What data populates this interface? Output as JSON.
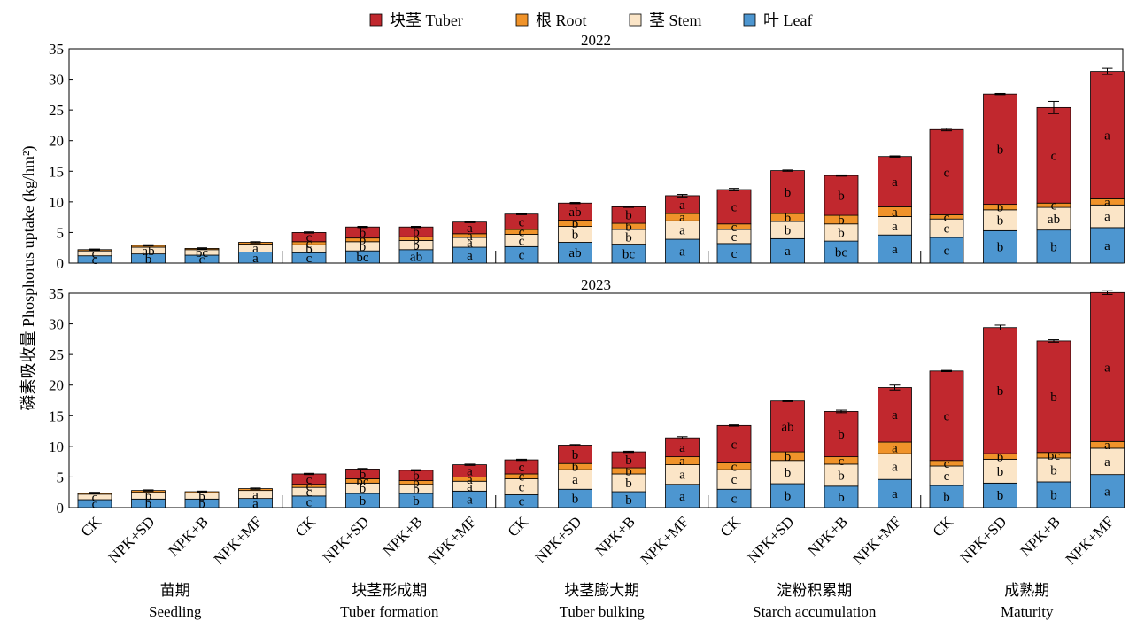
{
  "chart_data": {
    "type": "bar",
    "stacked": true,
    "ylabel": "磷素吸收量 Phosphorus uptake (kg/hm²)",
    "ylim": [
      0,
      35
    ],
    "yticks": [
      0,
      5,
      10,
      15,
      20,
      25,
      30,
      35
    ],
    "legend": {
      "position": "top-center",
      "entries": [
        "块茎 Tuber",
        "根 Root",
        "茎 Stem",
        "叶 Leaf"
      ]
    },
    "colors": {
      "leaf": "#4d96d0",
      "stem": "#fbe5c7",
      "root": "#f0932a",
      "tuber": "#c1282e"
    },
    "treatments": [
      "CK",
      "NPK+SD",
      "NPK+B",
      "NPK+MF"
    ],
    "stages": [
      {
        "zh": "苗期",
        "en": "Seedling"
      },
      {
        "zh": "块茎形成期",
        "en": "Tuber formation"
      },
      {
        "zh": "块茎膨大期",
        "en": "Tuber bulking"
      },
      {
        "zh": "淀粉积累期",
        "en": "Starch accumulation"
      },
      {
        "zh": "成熟期",
        "en": "Maturity"
      }
    ],
    "panels": [
      {
        "title": "2022",
        "bars": [
          {
            "stage": "Seedling",
            "treatment": "CK",
            "leaf": 1.2,
            "stem": 0.8,
            "root": 0.2,
            "tuber": 0.0,
            "total": 2.3,
            "err": 0.1,
            "letters": {
              "leaf": "c",
              "stem": "c",
              "root": "",
              "tuber": ""
            }
          },
          {
            "stage": "Seedling",
            "treatment": "NPK+SD",
            "leaf": 1.5,
            "stem": 1.1,
            "root": 0.3,
            "tuber": 0.0,
            "total": 3.0,
            "err": 0.1,
            "letters": {
              "leaf": "b",
              "stem": "ab",
              "root": "",
              "tuber": ""
            }
          },
          {
            "stage": "Seedling",
            "treatment": "NPK+B",
            "leaf": 1.3,
            "stem": 0.9,
            "root": 0.2,
            "tuber": 0.0,
            "total": 2.5,
            "err": 0.1,
            "letters": {
              "leaf": "c",
              "stem": "bc",
              "root": "",
              "tuber": ""
            }
          },
          {
            "stage": "Seedling",
            "treatment": "NPK+MF",
            "leaf": 1.8,
            "stem": 1.3,
            "root": 0.3,
            "tuber": 0.0,
            "total": 3.4,
            "err": 0.1,
            "letters": {
              "leaf": "a",
              "stem": "a",
              "root": "",
              "tuber": ""
            }
          },
          {
            "stage": "Tuber formation",
            "treatment": "CK",
            "leaf": 1.7,
            "stem": 1.3,
            "root": 0.5,
            "tuber": 1.5,
            "total": 5.0,
            "err": 0.1,
            "letters": {
              "leaf": "c",
              "stem": "b",
              "root": "c",
              "tuber": "c"
            }
          },
          {
            "stage": "Tuber formation",
            "treatment": "NPK+SD",
            "leaf": 2.0,
            "stem": 1.5,
            "root": 0.6,
            "tuber": 1.8,
            "total": 5.9,
            "err": 0.1,
            "letters": {
              "leaf": "bc",
              "stem": "b",
              "root": "b",
              "tuber": "b"
            }
          },
          {
            "stage": "Tuber formation",
            "treatment": "NPK+B",
            "leaf": 2.2,
            "stem": 1.5,
            "root": 0.6,
            "tuber": 1.6,
            "total": 5.9,
            "err": 0.1,
            "letters": {
              "leaf": "ab",
              "stem": "b",
              "root": "b",
              "tuber": "b"
            }
          },
          {
            "stage": "Tuber formation",
            "treatment": "NPK+MF",
            "leaf": 2.6,
            "stem": 1.6,
            "root": 0.6,
            "tuber": 1.9,
            "total": 6.7,
            "err": 0.1,
            "letters": {
              "leaf": "a",
              "stem": "a",
              "root": "a",
              "tuber": "a"
            }
          },
          {
            "stage": "Tuber bulking",
            "treatment": "CK",
            "leaf": 2.7,
            "stem": 2.0,
            "root": 0.8,
            "tuber": 2.5,
            "total": 8.0,
            "err": 0.1,
            "letters": {
              "leaf": "c",
              "stem": "c",
              "root": "c",
              "tuber": "c"
            }
          },
          {
            "stage": "Tuber bulking",
            "treatment": "NPK+SD",
            "leaf": 3.4,
            "stem": 2.6,
            "root": 1.0,
            "tuber": 2.8,
            "total": 9.8,
            "err": 0.1,
            "letters": {
              "leaf": "ab",
              "stem": "b",
              "root": "b",
              "tuber": "ab"
            }
          },
          {
            "stage": "Tuber bulking",
            "treatment": "NPK+B",
            "leaf": 3.1,
            "stem": 2.4,
            "root": 1.0,
            "tuber": 2.7,
            "total": 9.2,
            "err": 0.1,
            "letters": {
              "leaf": "bc",
              "stem": "b",
              "root": "b",
              "tuber": "b"
            }
          },
          {
            "stage": "Tuber bulking",
            "treatment": "NPK+MF",
            "leaf": 3.9,
            "stem": 3.0,
            "root": 1.2,
            "tuber": 2.9,
            "total": 11.0,
            "err": 0.2,
            "letters": {
              "leaf": "a",
              "stem": "a",
              "root": "a",
              "tuber": "a"
            }
          },
          {
            "stage": "Starch accumulation",
            "treatment": "CK",
            "leaf": 3.2,
            "stem": 2.3,
            "root": 0.9,
            "tuber": 5.6,
            "total": 12.0,
            "err": 0.2,
            "letters": {
              "leaf": "c",
              "stem": "c",
              "root": "c",
              "tuber": "c"
            }
          },
          {
            "stage": "Starch accumulation",
            "treatment": "NPK+SD",
            "leaf": 4.0,
            "stem": 2.8,
            "root": 1.3,
            "tuber": 7.0,
            "total": 15.1,
            "err": 0.1,
            "letters": {
              "leaf": "a",
              "stem": "b",
              "root": "b",
              "tuber": "b"
            }
          },
          {
            "stage": "Starch accumulation",
            "treatment": "NPK+B",
            "leaf": 3.6,
            "stem": 2.8,
            "root": 1.4,
            "tuber": 6.5,
            "total": 14.3,
            "err": 0.1,
            "letters": {
              "leaf": "bc",
              "stem": "b",
              "root": "b",
              "tuber": "b"
            }
          },
          {
            "stage": "Starch accumulation",
            "treatment": "NPK+MF",
            "leaf": 4.6,
            "stem": 3.0,
            "root": 1.6,
            "tuber": 8.2,
            "total": 17.4,
            "err": 0.1,
            "letters": {
              "leaf": "a",
              "stem": "a",
              "root": "a",
              "tuber": "a"
            }
          },
          {
            "stage": "Maturity",
            "treatment": "CK",
            "leaf": 4.2,
            "stem": 3.0,
            "root": 0.7,
            "tuber": 13.9,
            "total": 21.8,
            "err": 0.2,
            "letters": {
              "leaf": "c",
              "stem": "c",
              "root": "c",
              "tuber": "c"
            }
          },
          {
            "stage": "Maturity",
            "treatment": "NPK+SD",
            "leaf": 5.3,
            "stem": 3.4,
            "root": 0.9,
            "tuber": 18.0,
            "total": 27.6,
            "err": 0.1,
            "letters": {
              "leaf": "b",
              "stem": "b",
              "root": "b",
              "tuber": "b"
            }
          },
          {
            "stage": "Maturity",
            "treatment": "NPK+B",
            "leaf": 5.4,
            "stem": 3.7,
            "root": 0.7,
            "tuber": 15.6,
            "total": 25.4,
            "err": 1.0,
            "letters": {
              "leaf": "b",
              "stem": "ab",
              "root": "c",
              "tuber": "c"
            }
          },
          {
            "stage": "Maturity",
            "treatment": "NPK+MF",
            "leaf": 5.8,
            "stem": 3.7,
            "root": 1.0,
            "tuber": 20.8,
            "total": 31.3,
            "err": 0.5,
            "letters": {
              "leaf": "a",
              "stem": "a",
              "root": "a",
              "tuber": "a"
            }
          }
        ]
      },
      {
        "title": "2023",
        "bars": [
          {
            "stage": "Seedling",
            "treatment": "CK",
            "leaf": 1.3,
            "stem": 0.9,
            "root": 0.2,
            "tuber": 0.0,
            "total": 2.4,
            "err": 0.1,
            "letters": {
              "leaf": "c",
              "stem": "c",
              "root": "",
              "tuber": ""
            }
          },
          {
            "stage": "Seedling",
            "treatment": "NPK+SD",
            "leaf": 1.4,
            "stem": 1.1,
            "root": 0.3,
            "tuber": 0.0,
            "total": 2.8,
            "err": 0.1,
            "letters": {
              "leaf": "b",
              "stem": "b",
              "root": "",
              "tuber": ""
            }
          },
          {
            "stage": "Seedling",
            "treatment": "NPK+B",
            "leaf": 1.4,
            "stem": 1.0,
            "root": 0.2,
            "tuber": 0.0,
            "total": 2.6,
            "err": 0.1,
            "letters": {
              "leaf": "b",
              "stem": "b",
              "root": "",
              "tuber": ""
            }
          },
          {
            "stage": "Seedling",
            "treatment": "NPK+MF",
            "leaf": 1.5,
            "stem": 1.3,
            "root": 0.3,
            "tuber": 0.0,
            "total": 3.1,
            "err": 0.1,
            "letters": {
              "leaf": "a",
              "stem": "a",
              "root": "",
              "tuber": ""
            }
          },
          {
            "stage": "Tuber formation",
            "treatment": "CK",
            "leaf": 1.9,
            "stem": 1.4,
            "root": 0.5,
            "tuber": 1.7,
            "total": 5.5,
            "err": 0.1,
            "letters": {
              "leaf": "c",
              "stem": "c",
              "root": "c",
              "tuber": "c"
            }
          },
          {
            "stage": "Tuber formation",
            "treatment": "NPK+SD",
            "leaf": 2.3,
            "stem": 1.7,
            "root": 0.7,
            "tuber": 1.6,
            "total": 6.3,
            "err": 0.1,
            "letters": {
              "leaf": "b",
              "stem": "b",
              "root": "bc",
              "tuber": "b"
            }
          },
          {
            "stage": "Tuber formation",
            "treatment": "NPK+B",
            "leaf": 2.3,
            "stem": 1.5,
            "root": 0.6,
            "tuber": 1.7,
            "total": 6.1,
            "err": 0.1,
            "letters": {
              "leaf": "b",
              "stem": "b",
              "root": "b",
              "tuber": "b"
            }
          },
          {
            "stage": "Tuber formation",
            "treatment": "NPK+MF",
            "leaf": 2.7,
            "stem": 1.6,
            "root": 0.7,
            "tuber": 2.0,
            "total": 7.0,
            "err": 0.1,
            "letters": {
              "leaf": "a",
              "stem": "a",
              "root": "a",
              "tuber": "a"
            }
          },
          {
            "stage": "Tuber bulking",
            "treatment": "CK",
            "leaf": 2.1,
            "stem": 2.6,
            "root": 0.8,
            "tuber": 2.3,
            "total": 7.8,
            "err": 0.1,
            "letters": {
              "leaf": "c",
              "stem": "c",
              "root": "c",
              "tuber": "c"
            }
          },
          {
            "stage": "Tuber bulking",
            "treatment": "NPK+SD",
            "leaf": 3.0,
            "stem": 3.2,
            "root": 1.0,
            "tuber": 3.0,
            "total": 10.2,
            "err": 0.1,
            "letters": {
              "leaf": "b",
              "stem": "a",
              "root": "b",
              "tuber": "b"
            }
          },
          {
            "stage": "Tuber bulking",
            "treatment": "NPK+B",
            "leaf": 2.6,
            "stem": 2.9,
            "root": 1.0,
            "tuber": 2.6,
            "total": 9.1,
            "err": 0.1,
            "letters": {
              "leaf": "b",
              "stem": "b",
              "root": "b",
              "tuber": "b"
            }
          },
          {
            "stage": "Tuber bulking",
            "treatment": "NPK+MF",
            "leaf": 3.8,
            "stem": 3.2,
            "root": 1.3,
            "tuber": 3.1,
            "total": 11.4,
            "err": 0.2,
            "letters": {
              "leaf": "a",
              "stem": "a",
              "root": "a",
              "tuber": "a"
            }
          },
          {
            "stage": "Starch accumulation",
            "treatment": "CK",
            "leaf": 3.0,
            "stem": 3.2,
            "root": 1.1,
            "tuber": 6.1,
            "total": 13.4,
            "err": 0.1,
            "letters": {
              "leaf": "c",
              "stem": "c",
              "root": "c",
              "tuber": "c"
            }
          },
          {
            "stage": "Starch accumulation",
            "treatment": "NPK+SD",
            "leaf": 3.9,
            "stem": 3.8,
            "root": 1.4,
            "tuber": 8.3,
            "total": 17.4,
            "err": 0.1,
            "letters": {
              "leaf": "b",
              "stem": "b",
              "root": "b",
              "tuber": "ab"
            }
          },
          {
            "stage": "Starch accumulation",
            "treatment": "NPK+B",
            "leaf": 3.5,
            "stem": 3.6,
            "root": 1.2,
            "tuber": 7.4,
            "total": 15.7,
            "err": 0.2,
            "letters": {
              "leaf": "b",
              "stem": "b",
              "root": "c",
              "tuber": "b"
            }
          },
          {
            "stage": "Starch accumulation",
            "treatment": "NPK+MF",
            "leaf": 4.6,
            "stem": 4.2,
            "root": 1.9,
            "tuber": 8.9,
            "total": 19.6,
            "err": 0.4,
            "letters": {
              "leaf": "a",
              "stem": "a",
              "root": "a",
              "tuber": "a"
            }
          },
          {
            "stage": "Maturity",
            "treatment": "CK",
            "leaf": 3.6,
            "stem": 3.2,
            "root": 0.9,
            "tuber": 14.6,
            "total": 22.3,
            "err": 0.1,
            "letters": {
              "leaf": "b",
              "stem": "c",
              "root": "c",
              "tuber": "c"
            }
          },
          {
            "stage": "Maturity",
            "treatment": "NPK+SD",
            "leaf": 4.0,
            "stem": 3.9,
            "root": 0.9,
            "tuber": 20.6,
            "total": 29.4,
            "err": 0.4,
            "letters": {
              "leaf": "b",
              "stem": "b",
              "root": "b",
              "tuber": "b"
            }
          },
          {
            "stage": "Maturity",
            "treatment": "NPK+B",
            "leaf": 4.2,
            "stem": 3.9,
            "root": 0.9,
            "tuber": 18.2,
            "total": 27.2,
            "err": 0.2,
            "letters": {
              "leaf": "b",
              "stem": "b",
              "root": "bc",
              "tuber": "b"
            }
          },
          {
            "stage": "Maturity",
            "treatment": "NPK+MF",
            "leaf": 5.4,
            "stem": 4.3,
            "root": 1.1,
            "tuber": 24.3,
            "total": 35.1,
            "err": 0.3,
            "letters": {
              "leaf": "a",
              "stem": "a",
              "root": "a",
              "tuber": "a"
            }
          }
        ]
      }
    ]
  }
}
